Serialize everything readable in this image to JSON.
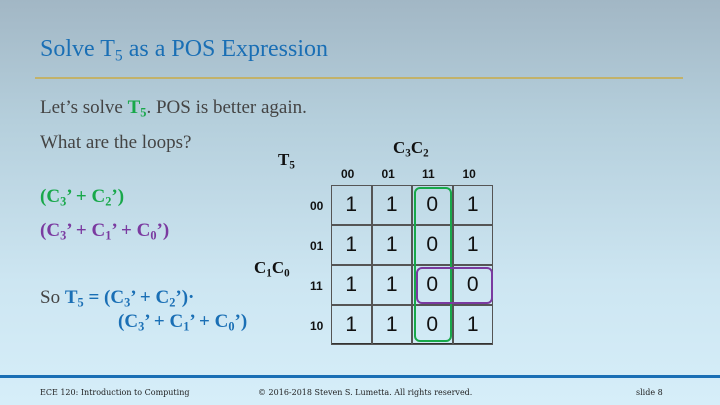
{
  "title": {
    "pre": "Solve T",
    "sub": "5",
    "post": " as a POS Expression"
  },
  "line1": {
    "pre": "Let’s solve ",
    "t": "T",
    "tsub": "5",
    "post": ".  POS is better again."
  },
  "line2": "What are the loops?",
  "loop1": {
    "a": "(C",
    "s1": "3",
    "b": "’ + C",
    "s2": "2",
    "c": "’)"
  },
  "loop2": {
    "a": "(C",
    "s1": "3",
    "b": "’ + C",
    "s2": "1",
    "c": "’ + C",
    "s3": "0",
    "d": "’)"
  },
  "result": {
    "so": "So ",
    "t": "T",
    "tsub": "5",
    "eq": " = (C",
    "s1": "3",
    "b": "’ + C",
    "s2": "2",
    "c": "’)·",
    "l2a": "(C",
    "l2s1": "3",
    "l2b": "’ + C",
    "l2s2": "1",
    "l2c": "’ + C",
    "l2s3": "0",
    "l2d": "’)"
  },
  "kmap": {
    "name": "T",
    "name_sub": "5",
    "col_var": {
      "a": "C",
      "s1": "3",
      "b": "C",
      "s2": "2"
    },
    "row_var": {
      "a": "C",
      "s1": "1",
      "b": "C",
      "s2": "0"
    },
    "col_headers": [
      "00",
      "01",
      "11",
      "10"
    ],
    "row_headers": [
      "00",
      "01",
      "11",
      "10"
    ],
    "cells": [
      [
        "1",
        "1",
        "0",
        "1"
      ],
      [
        "1",
        "1",
        "0",
        "1"
      ],
      [
        "1",
        "1",
        "0",
        "0"
      ],
      [
        "1",
        "1",
        "0",
        "1"
      ]
    ],
    "loop_colors": {
      "green": "#18a84a",
      "purple": "#7a3aa0"
    }
  },
  "footer": {
    "left": "ECE 120: Introduction to Computing",
    "center": "© 2016-2018 Steven S. Lumetta.  All rights reserved.",
    "right": "slide 8"
  }
}
